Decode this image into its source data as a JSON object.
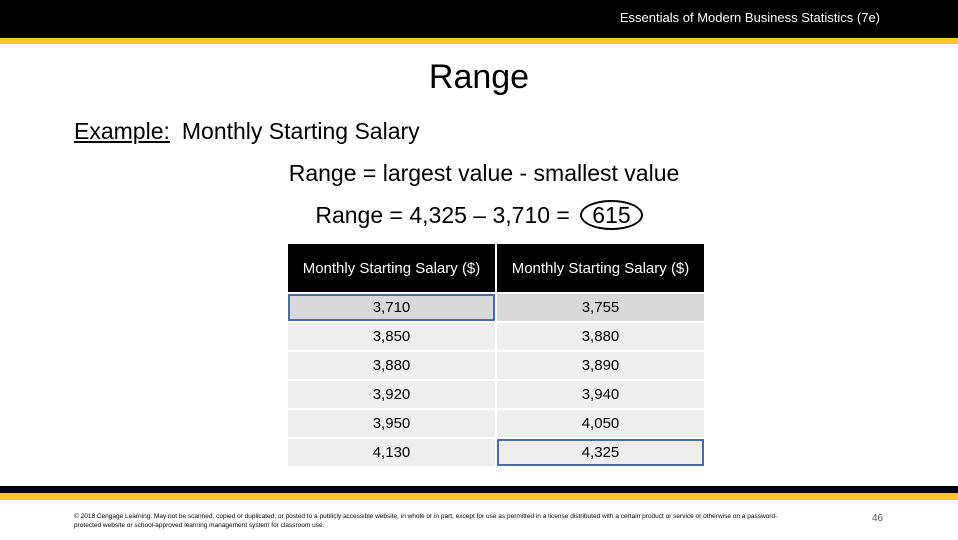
{
  "header": {
    "title": "Essentials of Modern Business Statistics (7e)"
  },
  "slide": {
    "title": "Range",
    "example_label": "Example:",
    "example_text": "Monthly Starting Salary",
    "formula_line1": "Range = largest value - smallest value",
    "formula_line2_prefix": "Range = 4,325 – 3,710 =",
    "formula_result": "615"
  },
  "table": {
    "headers": [
      "Monthly Starting Salary ($)",
      "Monthly Starting Salary ($)"
    ],
    "rows": [
      [
        "3,710",
        "3,755"
      ],
      [
        "3,850",
        "3,880"
      ],
      [
        "3,880",
        "3,890"
      ],
      [
        "3,920",
        "3,940"
      ],
      [
        "3,950",
        "4,050"
      ],
      [
        "4,130",
        "4,325"
      ]
    ],
    "highlight_color": "#4a6da8"
  },
  "footer": {
    "copyright": "© 2018 Cengage Learning. May not be scanned, copied or duplicated, or posted to a publicly accessible website, in whole or in part, except for use as permitted in a license distributed with a certain product or service or otherwise on a password-protected website or school-approved learning management system for classroom use.",
    "page_number": "46"
  },
  "colors": {
    "accent_gold": "#f5c72a",
    "header_black": "#000000"
  }
}
